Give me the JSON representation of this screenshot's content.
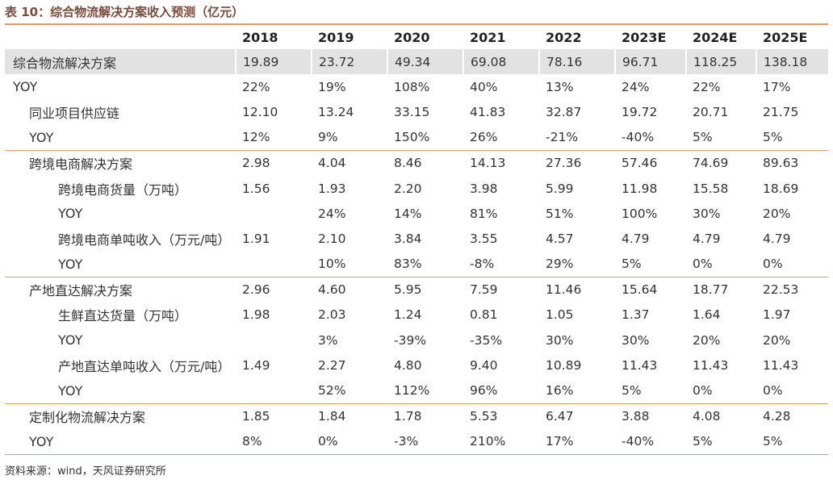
{
  "title": "表 10：综合物流解决方案收入预测（亿元）",
  "columns": [
    "",
    "2018",
    "2019",
    "2020",
    "2021",
    "2022",
    "2023E",
    "2024E",
    "2025E"
  ],
  "rows": [
    {
      "label": "综合物流解决方案",
      "values": [
        "19.89",
        "23.72",
        "49.34",
        "69.08",
        "78.16",
        "96.71",
        "118.25",
        "138.18"
      ]
    },
    {
      "label": "YOY",
      "values": [
        "22%",
        "19%",
        "108%",
        "40%",
        "13%",
        "24%",
        "22%",
        "17%"
      ]
    },
    {
      "label": "同业项目供应链",
      "values": [
        "12.10",
        "13.24",
        "33.15",
        "41.83",
        "32.87",
        "19.72",
        "20.71",
        "21.75"
      ]
    },
    {
      "label": "YOY",
      "values": [
        "12%",
        "9%",
        "150%",
        "26%",
        "-21%",
        "-40%",
        "5%",
        "5%"
      ]
    },
    {
      "label": "跨境电商解决方案",
      "values": [
        "2.98",
        "4.04",
        "8.46",
        "14.13",
        "27.36",
        "57.46",
        "74.69",
        "89.63"
      ]
    },
    {
      "label": "跨境电商货量（万吨）",
      "values": [
        "1.56",
        "1.93",
        "2.20",
        "3.98",
        "5.99",
        "11.98",
        "15.58",
        "18.69"
      ]
    },
    {
      "label": "YOY",
      "values": [
        "",
        "24%",
        "14%",
        "81%",
        "51%",
        "100%",
        "30%",
        "20%"
      ]
    },
    {
      "label": "跨境电商单吨收入（万元/吨）",
      "values": [
        "1.91",
        "2.10",
        "3.84",
        "3.55",
        "4.57",
        "4.79",
        "4.79",
        "4.79"
      ]
    },
    {
      "label": "YOY",
      "values": [
        "",
        "10%",
        "83%",
        "-8%",
        "29%",
        "5%",
        "0%",
        "0%"
      ]
    },
    {
      "label": "产地直达解决方案",
      "values": [
        "2.96",
        "4.60",
        "5.95",
        "7.59",
        "11.46",
        "15.64",
        "18.77",
        "22.53"
      ]
    },
    {
      "label": "生鲜直达货量（万吨）",
      "values": [
        "1.98",
        "2.03",
        "1.24",
        "0.81",
        "1.05",
        "1.37",
        "1.64",
        "1.97"
      ]
    },
    {
      "label": "YOY",
      "values": [
        "",
        "3%",
        "-39%",
        "-35%",
        "30%",
        "30%",
        "20%",
        "20%"
      ]
    },
    {
      "label": "产地直达单吨收入（万元/吨）",
      "values": [
        "1.49",
        "2.27",
        "4.80",
        "9.40",
        "10.89",
        "11.43",
        "11.43",
        "11.43"
      ]
    },
    {
      "label": "YOY",
      "values": [
        "",
        "52%",
        "112%",
        "96%",
        "16%",
        "5%",
        "0%",
        "0%"
      ]
    },
    {
      "label": "定制化物流解决方案",
      "values": [
        "1.85",
        "1.84",
        "1.78",
        "5.53",
        "6.47",
        "3.88",
        "4.08",
        "4.28"
      ]
    },
    {
      "label": "YOY",
      "values": [
        "8%",
        "0%",
        "-3%",
        "210%",
        "17%",
        "-40%",
        "5%",
        "5%"
      ]
    }
  ],
  "source": "资料来源：wind，天风证券研究所"
}
